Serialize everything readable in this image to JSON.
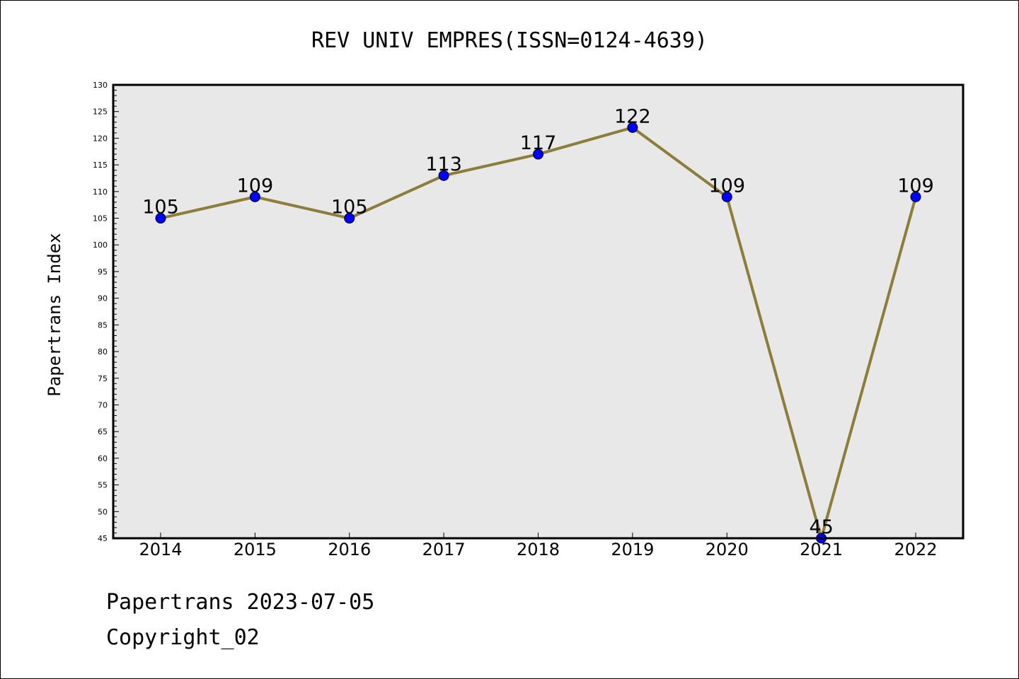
{
  "chart_data": {
    "type": "line",
    "title": "REV UNIV EMPRES(ISSN=0124-4639)",
    "xlabel": "",
    "ylabel": "Papertrans Index",
    "x": [
      "2014",
      "2015",
      "2016",
      "2017",
      "2018",
      "2019",
      "2020",
      "2021",
      "2022"
    ],
    "values": [
      105,
      109,
      105,
      113,
      117,
      122,
      109,
      45,
      109
    ],
    "data_labels": [
      "105",
      "109",
      "105",
      "113",
      "117",
      "122",
      "109",
      "45",
      "109"
    ],
    "ylim": [
      45,
      130
    ],
    "yticks": [
      "45",
      "50",
      "55",
      "60",
      "65",
      "70",
      "75",
      "80",
      "85",
      "90",
      "95",
      "100",
      "105",
      "110",
      "115",
      "120",
      "125",
      "130"
    ],
    "grid": false,
    "legend": "none",
    "colors": {
      "line": "#8c7d3a",
      "marker": "#0000ff",
      "plot_background": "#e8e8e8"
    }
  },
  "footer": {
    "line1": "Papertrans 2023-07-05",
    "line2": "Copyright_02"
  }
}
